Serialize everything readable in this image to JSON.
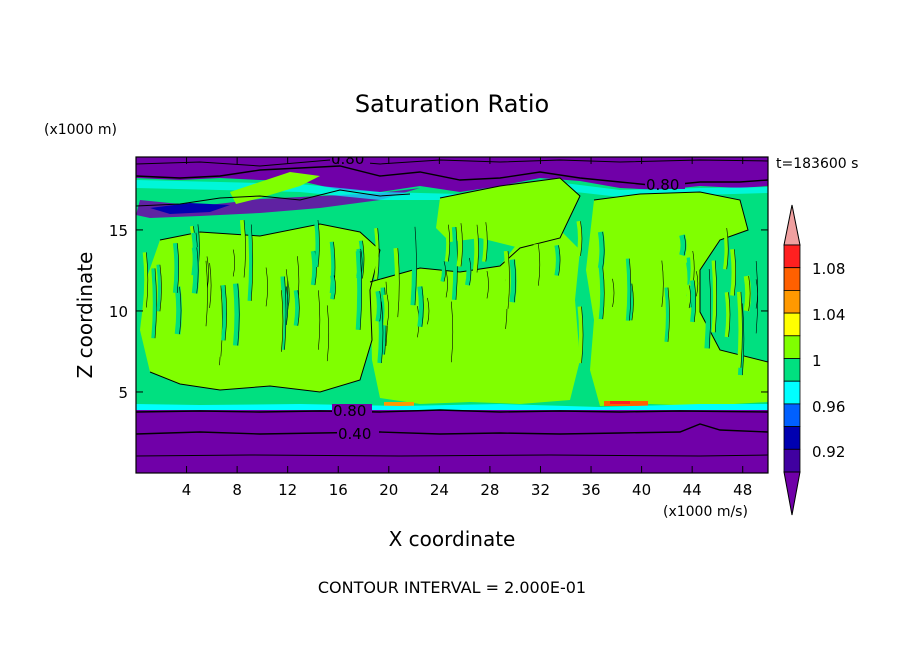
{
  "chart_data": {
    "type": "heatmap",
    "title": "Saturation Ratio",
    "xlabel": "X coordinate",
    "ylabel": "Z coordinate",
    "x_units": "(x1000 m/s)",
    "y_units": "(x1000 m)",
    "time_label": "t=183600 s",
    "footer": "CONTOUR INTERVAL = 2.000E-01",
    "xlim": [
      0,
      50
    ],
    "ylim": [
      0,
      19.5
    ],
    "x_ticks": [
      4,
      8,
      12,
      16,
      20,
      24,
      28,
      32,
      36,
      40,
      44,
      48
    ],
    "y_ticks": [
      5,
      10,
      15
    ],
    "colorbar": {
      "labels": [
        "1.08",
        "1.04",
        "1",
        "0.96",
        "0.92"
      ],
      "colors": [
        "#f0a0a0",
        "#ff2020",
        "#ff6000",
        "#ff9900",
        "#ffff00",
        "#80ff00",
        "#00e080",
        "#00ffff",
        "#0060ff",
        "#0000b0",
        "#4000a0",
        "#7000a8"
      ]
    },
    "contour_labels": [
      "0.80",
      "0.80",
      "0.80",
      "0.40"
    ],
    "bands": [
      {
        "z_min": 0,
        "z_max": 4.2,
        "value": "< 0.92",
        "color": "#7000a8"
      },
      {
        "z_min": 4.2,
        "z_max": 5.5,
        "value": "0.96 - 1.00",
        "color": "#00e080"
      },
      {
        "z_min": 5.5,
        "z_max": 14.5,
        "value": "1.00 - 1.04",
        "color": "#80ff00"
      },
      {
        "z_min": 14.5,
        "z_max": 18.6,
        "value": "0.96 - 1.00",
        "color": "#00e080"
      },
      {
        "z_min": 18.6,
        "z_max": 19.5,
        "value": "< 0.92",
        "color": "#7000a8"
      }
    ],
    "grid": false
  }
}
